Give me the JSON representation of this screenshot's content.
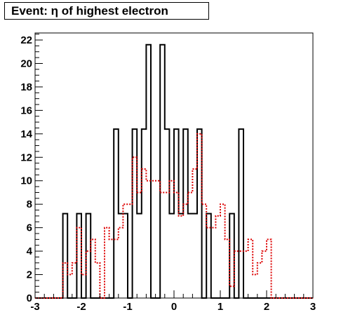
{
  "chart_data": {
    "type": "histogram",
    "title": "Event: η of highest electron",
    "xlim": [
      -3,
      3
    ],
    "ylim": [
      0,
      22.6
    ],
    "x_ticks": [
      "-3",
      "-2",
      "-1",
      "0",
      "1",
      "2",
      "3"
    ],
    "y_ticks": [
      "0",
      "2",
      "4",
      "6",
      "8",
      "10",
      "12",
      "14",
      "16",
      "18",
      "20",
      "22"
    ],
    "bin_edges": [
      -3.0,
      -2.9,
      -2.8,
      -2.7,
      -2.6,
      -2.5,
      -2.4,
      -2.3,
      -2.2,
      -2.1,
      -2.0,
      -1.9,
      -1.8,
      -1.7,
      -1.6,
      -1.5,
      -1.4,
      -1.3,
      -1.2,
      -1.1,
      -1.0,
      -0.9,
      -0.8,
      -0.7,
      -0.6,
      -0.5,
      -0.4,
      -0.3,
      -0.2,
      -0.1,
      0.0,
      0.1,
      0.2,
      0.3,
      0.4,
      0.5,
      0.6,
      0.7,
      0.8,
      0.9,
      1.0,
      1.1,
      1.2,
      1.3,
      1.4,
      1.5,
      1.6,
      1.7,
      1.8,
      1.9,
      2.0,
      2.1,
      2.2,
      2.3,
      2.4,
      2.5,
      2.6,
      2.7,
      2.8,
      2.9,
      3.0
    ],
    "series": [
      {
        "color": "#000000",
        "style": "solid",
        "values": [
          0,
          0,
          0,
          0,
          0,
          0,
          7.2,
          0,
          0,
          7.2,
          0,
          7.2,
          0,
          0,
          0,
          0,
          0,
          14.4,
          7.2,
          7.2,
          0,
          14.4,
          7.2,
          14.4,
          21.6,
          0,
          0,
          21.6,
          14.4,
          7.2,
          14.4,
          7.2,
          14.4,
          7.2,
          7.2,
          14.4,
          0,
          7.2,
          0,
          0,
          0,
          0,
          7.2,
          0,
          14.4,
          0,
          0,
          0,
          0,
          0,
          0,
          0,
          0,
          0,
          0,
          0,
          0,
          0,
          0,
          0
        ]
      },
      {
        "color": "#dd0000",
        "style": "dotted",
        "values": [
          0,
          0,
          0,
          0,
          0,
          0,
          3,
          2,
          3,
          6,
          2,
          4,
          5,
          3,
          0,
          6,
          5,
          5,
          6,
          8,
          8,
          12,
          9,
          11,
          10,
          10,
          10,
          9,
          9,
          10,
          9,
          7,
          8,
          9,
          11,
          14,
          8,
          6,
          6,
          7,
          8,
          5,
          1,
          4,
          4,
          4,
          5,
          2,
          3,
          4,
          5,
          0,
          0,
          0,
          0,
          0,
          0,
          0,
          0,
          0
        ]
      }
    ]
  }
}
